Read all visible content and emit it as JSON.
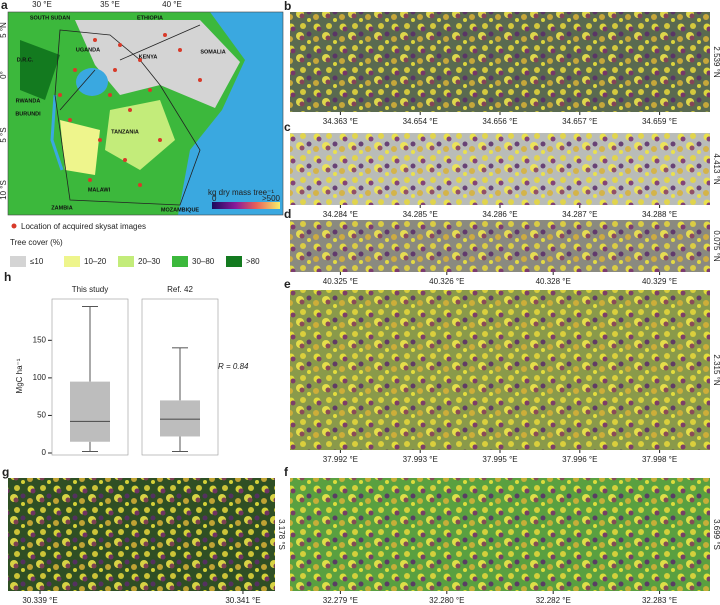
{
  "panels": {
    "a": {
      "label": "a",
      "lon_ticks": [
        "30 °E",
        "35 °E",
        "40 °E"
      ],
      "lat_ticks": [
        "5 °N",
        "0°",
        "5 °S",
        "10 °S"
      ],
      "countries": [
        "SOUTH SUDAN",
        "ETHIOPIA",
        "UGANDA",
        "KENYA",
        "SOMALIA",
        "D.R.C.",
        "RWANDA",
        "BURUNDI",
        "TANZANIA",
        "ZAMBIA",
        "MALAWI",
        "MOZAMBIQUE"
      ],
      "points_legend": "Location of acquired skysat images",
      "tree_cover_title": "Tree cover (%)",
      "tree_cover_classes": [
        {
          "label": "≤10",
          "color": "#d4d4d4"
        },
        {
          "label": "10–20",
          "color": "#eef58c"
        },
        {
          "label": "20–30",
          "color": "#c3ec7a"
        },
        {
          "label": "30–80",
          "color": "#3cb83c"
        },
        {
          "label": ">80",
          "color": "#137a1f"
        }
      ],
      "colorbar": {
        "title": "kg dry mass tree⁻¹",
        "min_label": "0",
        "max_label": ">500"
      }
    },
    "b": {
      "label": "b",
      "lon_ticks": [
        "34.363 °E",
        "34.654 °E",
        "34.656 °E",
        "34.657 °E",
        "34.659 °E"
      ],
      "lat": "2.539 °N"
    },
    "c": {
      "label": "c",
      "lon_ticks": [
        "34.284 °E",
        "34.285 °E",
        "34.286 °E",
        "34.287 °E",
        "34.288 °E"
      ],
      "lat": "4.413 °N"
    },
    "d": {
      "label": "d",
      "lon_ticks": [
        "40.325 °E",
        "40.326 °E",
        "40.328 °E",
        "40.329 °E"
      ],
      "lat": "0.075 °N"
    },
    "e": {
      "label": "e",
      "lon_ticks": [
        "37.992 °E",
        "37.993 °E",
        "37.995 °E",
        "37.996 °E",
        "37.998 °E"
      ],
      "lat": "2.315 °N"
    },
    "f": {
      "label": "f",
      "lon_ticks": [
        "32.279 °E",
        "32.280 °E",
        "32.282 °E",
        "32.283 °E"
      ],
      "lat": "3.699 °S"
    },
    "g": {
      "label": "g",
      "lon_ticks": [
        "30.339 °E",
        "30.341 °E"
      ],
      "lat": "3.178 °S"
    }
  },
  "chart_data": {
    "type": "box",
    "label": "h",
    "ylabel": "MgC ha⁻¹",
    "ylim": [
      0,
      205
    ],
    "yticks": [
      0,
      50,
      100,
      150
    ],
    "color": "#bdbdbd",
    "series": [
      {
        "name": "This study",
        "min": 2,
        "q1": 15,
        "median": 42,
        "q3": 95,
        "max": 195
      },
      {
        "name": "Ref. 42",
        "min": 2,
        "q1": 22,
        "median": 45,
        "q3": 70,
        "max": 140
      }
    ],
    "annotation": "R = 0.84"
  }
}
